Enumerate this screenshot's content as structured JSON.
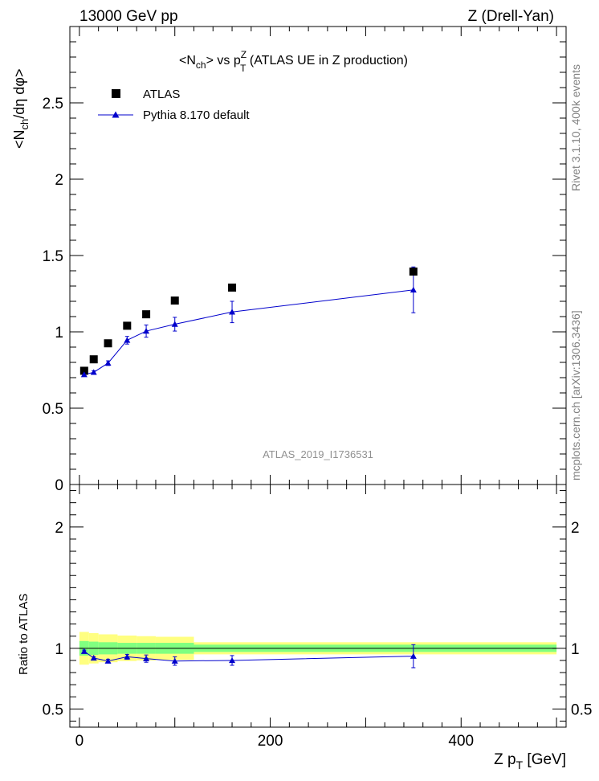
{
  "header": {
    "left": "13000 GeV pp",
    "right": "Z (Drell-Yan)"
  },
  "side_labels": {
    "rivet": "Rivet 3.1.10,  400k events",
    "mcplots": "mcplots.cern.ch [arXiv:1306.3436]"
  },
  "watermark": "ATLAS_2019_I1736531",
  "chart_data": {
    "type": "scatter",
    "title": {
      "part1": "<N",
      "sub1": "ch",
      "part2": "> vs p",
      "sup": "Z",
      "sub2": "T",
      "part3": " (ATLAS UE in Z production)"
    },
    "ylabel_main": {
      "part1": "<N",
      "sub": "ch",
      "part2": "/dη dφ>"
    },
    "ylabel_ratio": "Ratio to ATLAS",
    "xlabel": {
      "part1": "Z p",
      "sub": "T",
      "part2": " [GeV]"
    },
    "xlim": [
      -10,
      510
    ],
    "ylim_main": [
      0,
      3.0
    ],
    "ylim_ratio": [
      0.35,
      2.35
    ],
    "x_ticks_labeled": [
      "0",
      "200",
      "400"
    ],
    "x_tick_values": [
      0,
      200,
      400
    ],
    "y_ticks_main_labeled": [
      "0",
      "0.5",
      "1",
      "1.5",
      "2",
      "2.5"
    ],
    "y_tick_main_values": [
      0,
      0.5,
      1,
      1.5,
      2,
      2.5
    ],
    "y_ticks_ratio_labeled": [
      "0.5",
      "1",
      "2"
    ],
    "y_tick_ratio_values": [
      0.5,
      1,
      2
    ],
    "legend": [
      {
        "name": "ATLAS",
        "marker": "square",
        "color": "#000000"
      },
      {
        "name": "Pythia 8.170 default",
        "marker": "triangle-line",
        "color": "#0000cc"
      }
    ],
    "data_color": "#000000",
    "mc_color": "#0000cc",
    "band_colors": {
      "outer": "#ffff80",
      "inner": "#80ff80"
    },
    "series": [
      {
        "name": "ATLAS",
        "x": [
          5,
          15,
          30,
          50,
          70,
          100,
          160,
          350
        ],
        "y": [
          0.745,
          0.82,
          0.925,
          1.04,
          1.115,
          1.205,
          1.29,
          1.395
        ]
      },
      {
        "name": "Pythia 8.170 default",
        "x": [
          5,
          15,
          30,
          50,
          70,
          100,
          160,
          350
        ],
        "y": [
          0.72,
          0.735,
          0.795,
          0.945,
          1.005,
          1.05,
          1.13,
          1.275
        ],
        "yerr": [
          0.01,
          0.01,
          0.015,
          0.025,
          0.04,
          0.045,
          0.07,
          0.15
        ]
      }
    ],
    "ratio": {
      "x": [
        5,
        15,
        30,
        50,
        70,
        100,
        160,
        350
      ],
      "y": [
        0.975,
        0.92,
        0.895,
        0.93,
        0.915,
        0.895,
        0.9,
        0.935
      ],
      "yerr": [
        0.01,
        0.01,
        0.015,
        0.02,
        0.03,
        0.035,
        0.04,
        0.095
      ]
    },
    "ratio_bands": [
      {
        "x0": 0,
        "x1": 10,
        "outer": [
          0.865,
          1.135
        ],
        "inner": [
          0.94,
          1.06
        ]
      },
      {
        "x0": 10,
        "x1": 20,
        "outer": [
          0.875,
          1.125
        ],
        "inner": [
          0.945,
          1.055
        ]
      },
      {
        "x0": 20,
        "x1": 40,
        "outer": [
          0.885,
          1.115
        ],
        "inner": [
          0.95,
          1.05
        ]
      },
      {
        "x0": 40,
        "x1": 60,
        "outer": [
          0.895,
          1.105
        ],
        "inner": [
          0.955,
          1.045
        ]
      },
      {
        "x0": 60,
        "x1": 80,
        "outer": [
          0.9,
          1.1
        ],
        "inner": [
          0.955,
          1.045
        ]
      },
      {
        "x0": 80,
        "x1": 120,
        "outer": [
          0.905,
          1.095
        ],
        "inner": [
          0.955,
          1.045
        ]
      },
      {
        "x0": 120,
        "x1": 500,
        "outer": [
          0.95,
          1.05
        ],
        "inner": [
          0.97,
          1.03
        ]
      }
    ]
  }
}
